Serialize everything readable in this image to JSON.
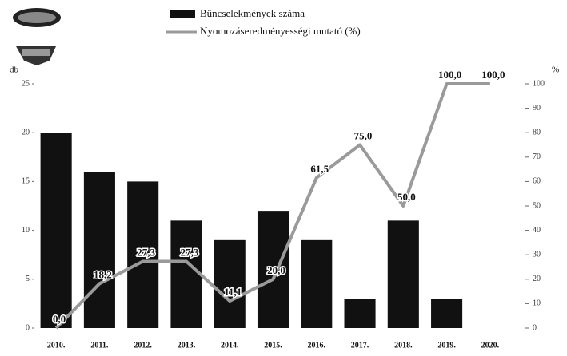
{
  "chart_data": {
    "type": "bar-line",
    "categories": [
      "2010.",
      "2011.",
      "2012.",
      "2013.",
      "2014.",
      "2015.",
      "2016.",
      "2017.",
      "2018.",
      "2019.",
      "2020."
    ],
    "series": [
      {
        "name": "Bűncselekmények száma",
        "color": "#111111",
        "type": "bar",
        "values": [
          20,
          16,
          15,
          11,
          9,
          12,
          9,
          3,
          11,
          3,
          null
        ]
      },
      {
        "name": "Nyomozáseredményességi mutató (%)",
        "color": "#9a9a9a",
        "type": "line",
        "axis": "y2",
        "values": [
          0.0,
          18.2,
          27.3,
          27.3,
          11.1,
          20.0,
          61.5,
          75.0,
          50.0,
          100.0,
          100.0
        ],
        "value_labels": [
          "0,0",
          "18,2",
          "27,3",
          "27,3",
          "11,1",
          "20,0",
          "61,5",
          "75,0",
          "50,0",
          "100,0",
          "100,0"
        ]
      }
    ],
    "ylabel": "db",
    "y2label": "%",
    "ylim": [
      0,
      25
    ],
    "yticks": [
      0,
      5,
      10,
      15,
      20,
      25
    ],
    "y2lim": [
      0,
      100
    ],
    "y2ticks": [
      0,
      10,
      20,
      30,
      40,
      50,
      60,
      70,
      80,
      90,
      100
    ]
  }
}
